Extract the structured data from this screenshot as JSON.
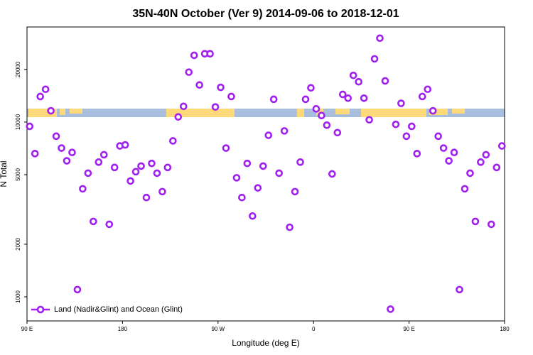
{
  "chart_data": {
    "type": "scatter",
    "title": "35N-40N October (Ver 9)   2014-09-06 to 2018-12-01",
    "xlabel": "Longitude (deg E)",
    "ylabel": "N Total",
    "log_y": true,
    "legend": "bottom left",
    "xlim": [
      90,
      540
    ],
    "xticks": [
      {
        "value": 90,
        "label": "90 E"
      },
      {
        "value": 180,
        "label": "180"
      },
      {
        "value": 270,
        "label": "90 W"
      },
      {
        "value": 360,
        "label": "0"
      },
      {
        "value": 450,
        "label": "90 E"
      },
      {
        "value": 540,
        "label": "180"
      }
    ],
    "ylim": [
      728,
      35000
    ],
    "yticks": [
      1000,
      2000,
      5000,
      10000,
      20000
    ],
    "series": [
      {
        "name": "Land (Nadir&Glint) and Ocean (Glint)",
        "color": "#a020f0",
        "x": [
          92.5,
          97.5,
          102.5,
          107.5,
          112.5,
          117.5,
          122.5,
          127.5,
          132.5,
          137.5,
          142.5,
          147.5,
          152.5,
          157.5,
          162.5,
          167.5,
          172.5,
          177.5,
          182.5,
          187.5,
          192.5,
          197.5,
          202.5,
          207.5,
          212.5,
          217.5,
          222.5,
          227.5,
          232.5,
          237.5,
          242.5,
          247.5,
          252.5,
          257.5,
          262.5,
          267.5,
          272.5,
          277.5,
          282.5,
          287.5,
          292.5,
          297.5,
          302.5,
          307.5,
          312.5,
          317.5,
          322.5,
          327.5,
          332.5,
          337.5,
          342.5,
          347.5,
          352.5,
          357.5,
          362.5,
          367.5,
          372.5,
          377.5,
          382.5,
          387.5,
          392.5,
          397.5,
          402.5,
          407.5,
          412.5,
          417.5,
          422.5,
          427.5,
          432.5,
          437.5,
          442.5,
          447.5,
          452.5,
          457.5,
          462.5,
          467.5,
          472.5,
          477.5,
          482.5,
          487.5,
          492.5,
          497.5,
          502.5,
          507.5,
          512.5,
          517.5,
          522.5,
          527.5,
          532.5,
          537.5
        ],
        "values": [
          9450,
          6600,
          14000,
          15400,
          11600,
          8300,
          7100,
          6000,
          6700,
          1100,
          4150,
          5100,
          2700,
          5900,
          6500,
          2600,
          5500,
          7300,
          7400,
          4600,
          5200,
          5600,
          3700,
          5800,
          5100,
          4000,
          5500,
          7800,
          10700,
          12300,
          19300,
          24100,
          16300,
          24600,
          24600,
          12200,
          15800,
          7100,
          14000,
          4800,
          3700,
          5800,
          2900,
          4200,
          5600,
          8400,
          13500,
          5100,
          8900,
          2500,
          4000,
          5900,
          13500,
          15700,
          11900,
          10900,
          9600,
          5050,
          8700,
          14400,
          13700,
          18500,
          17000,
          13700,
          10300,
          23000,
          30200,
          17200,
          850,
          9700,
          12800,
          8300,
          9450,
          6600,
          14000,
          15400,
          11600,
          8300,
          7100,
          6000,
          6700,
          1100,
          4150,
          5100,
          2700,
          5900,
          6500,
          2600,
          5500,
          7300
        ]
      }
    ]
  }
}
